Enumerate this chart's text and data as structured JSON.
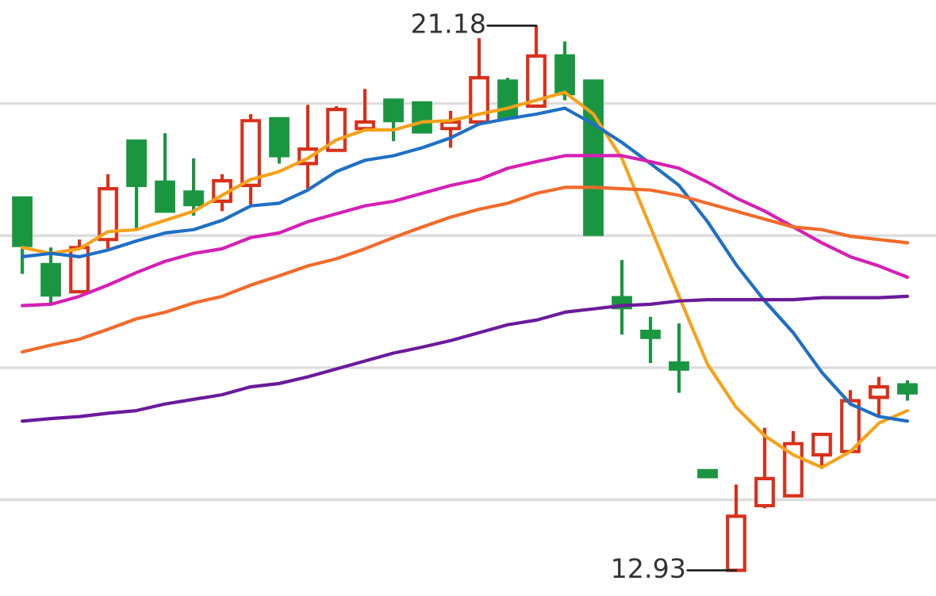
{
  "chart_data": {
    "type": "candlestick",
    "categories": [
      null,
      null,
      null,
      null,
      null,
      null,
      null,
      null,
      null,
      null,
      null,
      null,
      null,
      null,
      null,
      null,
      null,
      null,
      null,
      null,
      null,
      null,
      null,
      null,
      null,
      null,
      null,
      null,
      null,
      null,
      null,
      null
    ],
    "ohlc": [
      [
        18.57,
        18.57,
        17.42,
        17.85
      ],
      [
        17.56,
        17.82,
        16.98,
        17.1
      ],
      [
        17.15,
        17.94,
        17.15,
        17.82
      ],
      [
        17.94,
        18.93,
        17.8,
        18.71
      ],
      [
        19.43,
        19.45,
        18.09,
        18.76
      ],
      [
        18.81,
        19.55,
        18.37,
        18.37
      ],
      [
        18.66,
        19.17,
        18.3,
        18.47
      ],
      [
        18.52,
        18.93,
        18.37,
        18.83
      ],
      [
        18.76,
        19.84,
        18.47,
        19.74
      ],
      [
        19.77,
        19.77,
        19.09,
        19.21
      ],
      [
        19.09,
        19.98,
        18.71,
        19.31
      ],
      [
        19.29,
        19.96,
        19.29,
        19.91
      ],
      [
        19.62,
        20.22,
        19.62,
        19.72
      ],
      [
        20.05,
        20.05,
        19.43,
        19.74
      ],
      [
        20.01,
        20.03,
        19.57,
        19.57
      ],
      [
        19.62,
        19.89,
        19.33,
        19.72
      ],
      [
        19.72,
        20.99,
        19.72,
        20.39
      ],
      [
        20.34,
        20.39,
        19.79,
        19.79
      ],
      [
        19.96,
        21.18,
        19.96,
        20.72
      ],
      [
        20.72,
        20.94,
        20.05,
        20.15
      ],
      [
        20.34,
        20.34,
        18.02,
        18.02
      ],
      [
        17.06,
        17.63,
        16.5,
        16.91
      ],
      [
        16.55,
        16.77,
        16.07,
        16.46
      ],
      [
        16.07,
        16.67,
        15.62,
        15.98
      ],
      [
        14.44,
        14.44,
        14.35,
        14.35
      ],
      [
        12.93,
        14.23,
        12.93,
        13.75
      ],
      [
        13.91,
        15.09,
        13.87,
        14.32
      ],
      [
        14.06,
        15.04,
        14.06,
        14.85
      ],
      [
        14.68,
        14.99,
        14.47,
        14.99
      ],
      [
        14.73,
        15.66,
        14.73,
        15.5
      ],
      [
        15.55,
        15.86,
        15.28,
        15.71
      ],
      [
        15.74,
        15.81,
        15.5,
        15.62
      ]
    ],
    "colors": [
      "#1a9641",
      "#1a9641",
      "#d9301b",
      "#d9301b",
      "#1a9641",
      "#1a9641",
      "#1a9641",
      "#d9301b",
      "#d9301b",
      "#1a9641",
      "#d9301b",
      "#d9301b",
      "#d9301b",
      "#1a9641",
      "#1a9641",
      "#d9301b",
      "#d9301b",
      "#1a9641",
      "#d9301b",
      "#1a9641",
      "#1a9641",
      "#1a9641",
      "#1a9641",
      "#1a9641",
      "#1a9641",
      "#d9301b",
      "#d9301b",
      "#d9301b",
      "#d9301b",
      "#d9301b",
      "#d9301b",
      "#1a9641"
    ],
    "series": [
      {
        "type": "line",
        "color": "#f7a11a",
        "values": [
          17.82,
          17.73,
          17.8,
          18.06,
          18.09,
          18.23,
          18.37,
          18.61,
          18.85,
          18.97,
          19.17,
          19.45,
          19.6,
          19.6,
          19.72,
          19.74,
          19.84,
          19.93,
          20.05,
          20.17,
          19.84,
          19.17,
          18.13,
          17.08,
          16.05,
          15.4,
          14.97,
          14.68,
          14.49,
          14.73,
          15.16,
          15.35
        ]
      },
      {
        "type": "line",
        "color": "#1f6fc5",
        "values": [
          17.68,
          17.73,
          17.68,
          17.78,
          17.92,
          18.04,
          18.09,
          18.23,
          18.45,
          18.49,
          18.69,
          18.97,
          19.14,
          19.21,
          19.33,
          19.48,
          19.69,
          19.77,
          19.84,
          19.93,
          19.69,
          19.41,
          19.09,
          18.76,
          18.21,
          17.56,
          17.01,
          16.53,
          15.93,
          15.45,
          15.26,
          15.19
        ]
      },
      {
        "type": "line",
        "color": "#d61fb4",
        "values": [
          16.94,
          16.96,
          17.08,
          17.25,
          17.44,
          17.61,
          17.73,
          17.8,
          17.97,
          18.04,
          18.21,
          18.33,
          18.45,
          18.52,
          18.64,
          18.76,
          18.85,
          19.02,
          19.12,
          19.21,
          19.21,
          19.21,
          19.12,
          19.02,
          18.81,
          18.57,
          18.37,
          18.13,
          17.89,
          17.68,
          17.54,
          17.37
        ]
      },
      {
        "type": "line",
        "color": "#f26a2a",
        "values": [
          16.24,
          16.34,
          16.43,
          16.58,
          16.74,
          16.84,
          16.98,
          17.08,
          17.25,
          17.39,
          17.54,
          17.65,
          17.8,
          17.97,
          18.13,
          18.28,
          18.4,
          18.49,
          18.64,
          18.73,
          18.73,
          18.71,
          18.69,
          18.61,
          18.49,
          18.37,
          18.25,
          18.13,
          18.09,
          17.99,
          17.94,
          17.89
        ]
      },
      {
        "type": "line",
        "color": "#6a1b9a",
        "values": [
          15.19,
          15.23,
          15.26,
          15.31,
          15.35,
          15.45,
          15.52,
          15.59,
          15.71,
          15.76,
          15.86,
          15.98,
          16.1,
          16.22,
          16.31,
          16.41,
          16.53,
          16.65,
          16.72,
          16.84,
          16.89,
          16.94,
          16.96,
          17.01,
          17.03,
          17.03,
          17.03,
          17.03,
          17.06,
          17.06,
          17.06,
          17.08
        ]
      }
    ],
    "grid": "y",
    "legend": false,
    "annotations": [
      "21.18",
      "12.93"
    ]
  }
}
